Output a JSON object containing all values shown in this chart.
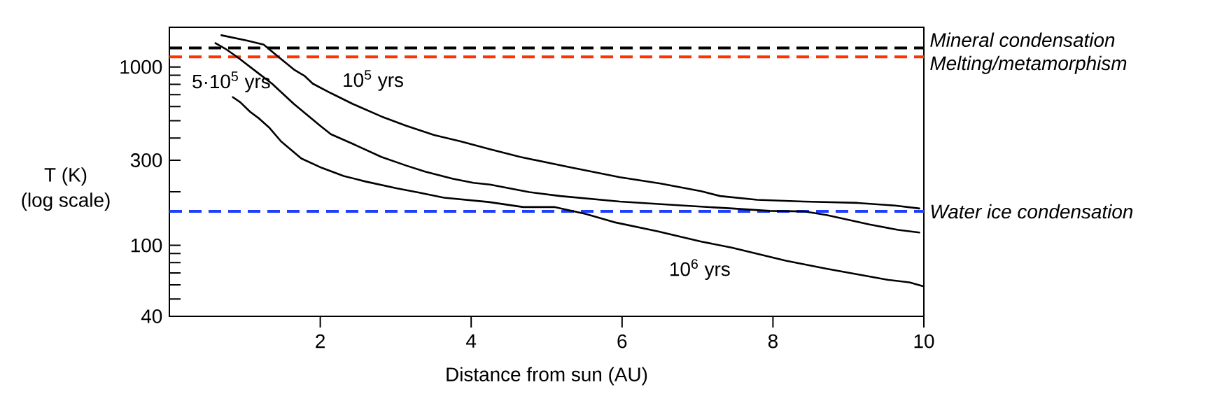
{
  "chart_data": {
    "type": "line",
    "xlabel": "Distance from sun (AU)",
    "ylabel": "T (K) (log scale)",
    "log": "y",
    "xlim": [
      0,
      10
    ],
    "ylim": [
      40,
      1670
    ],
    "xticks": [
      2,
      4,
      6,
      8,
      10
    ],
    "yticks": [
      40,
      {
        "value": 50,
        "label": null
      },
      {
        "value": 60,
        "label": null
      },
      {
        "value": 70,
        "label": null
      },
      {
        "value": 80,
        "label": null
      },
      {
        "value": 90,
        "label": null
      },
      100,
      {
        "value": 200,
        "label": null
      },
      300,
      {
        "value": 400,
        "label": null
      },
      {
        "value": 500,
        "label": null
      },
      {
        "value": 600,
        "label": null
      },
      {
        "value": 700,
        "label": null
      },
      {
        "value": 800,
        "label": null
      },
      {
        "value": 900,
        "label": null
      },
      1000
    ],
    "line_style": "solid",
    "marker": "none",
    "series": [
      {
        "color": "#000000",
        "x": [
          0.69,
          1.03,
          1.25,
          1.4,
          1.65,
          1.79,
          1.9,
          2.14,
          2.43,
          2.81,
          3.14,
          3.51,
          3.86,
          4.25,
          4.65,
          5.31,
          5.97,
          6.51,
          7.05,
          7.3,
          7.79,
          8.41,
          9.12,
          9.62,
          9.94
        ],
        "values": [
          1507,
          1406,
          1334,
          1183,
          968,
          893,
          807,
          714,
          621,
          528,
          468,
          415,
          383,
          346,
          313,
          274,
          241,
          222,
          201,
          189,
          180,
          176,
          173,
          167,
          161
        ]
      },
      {
        "color": "#000000",
        "x": [
          0.61,
          0.74,
          0.9,
          1.17,
          1.36,
          1.65,
          2.0,
          2.14,
          2.43,
          2.81,
          3.14,
          3.39,
          3.76,
          4.03,
          4.25,
          4.77,
          5.18,
          5.97,
          6.63,
          7.46,
          7.96,
          8.41,
          8.71,
          9.28,
          9.66,
          9.94
        ],
        "values": [
          1361,
          1267,
          1137,
          929,
          807,
          621,
          468,
          420,
          371,
          313,
          280,
          259,
          236,
          224,
          219,
          199,
          189,
          176,
          169,
          161,
          156,
          155,
          148,
          131,
          122,
          118
        ]
      },
      {
        "color": "#000000",
        "x": [
          0.84,
          0.94,
          1.07,
          1.19,
          1.32,
          1.48,
          1.65,
          1.75,
          2.02,
          2.31,
          2.6,
          3.01,
          3.3,
          3.64,
          4.23,
          4.69,
          5.1,
          5.52,
          5.89,
          6.47,
          7.05,
          7.46,
          8.17,
          8.71,
          9.53,
          9.81,
          9.99
        ],
        "values": [
          678,
          634,
          561,
          514,
          459,
          383,
          333,
          307,
          272,
          245,
          228,
          209,
          198,
          185,
          175,
          164,
          164,
          150,
          135,
          120,
          105,
          97,
          82,
          74,
          64,
          62,
          59
        ]
      }
    ],
    "ref_lines": [
      {
        "axis": "y",
        "value": 1280,
        "label": "Mineral condensation",
        "color": "#000000",
        "line_style": "dashed"
      },
      {
        "axis": "y",
        "value": 1140,
        "label": "Melting/metamorphism",
        "color": "#ff3300",
        "line_style": "dashed"
      },
      {
        "axis": "y",
        "value": 155,
        "label": "Water ice condensation",
        "color": "#1f3fff",
        "line_style": "dashed"
      }
    ],
    "annotations": [
      "5·10$^{5}$ yrs",
      "10$^{5}$ yrs",
      "10$^{6}$ yrs"
    ]
  }
}
